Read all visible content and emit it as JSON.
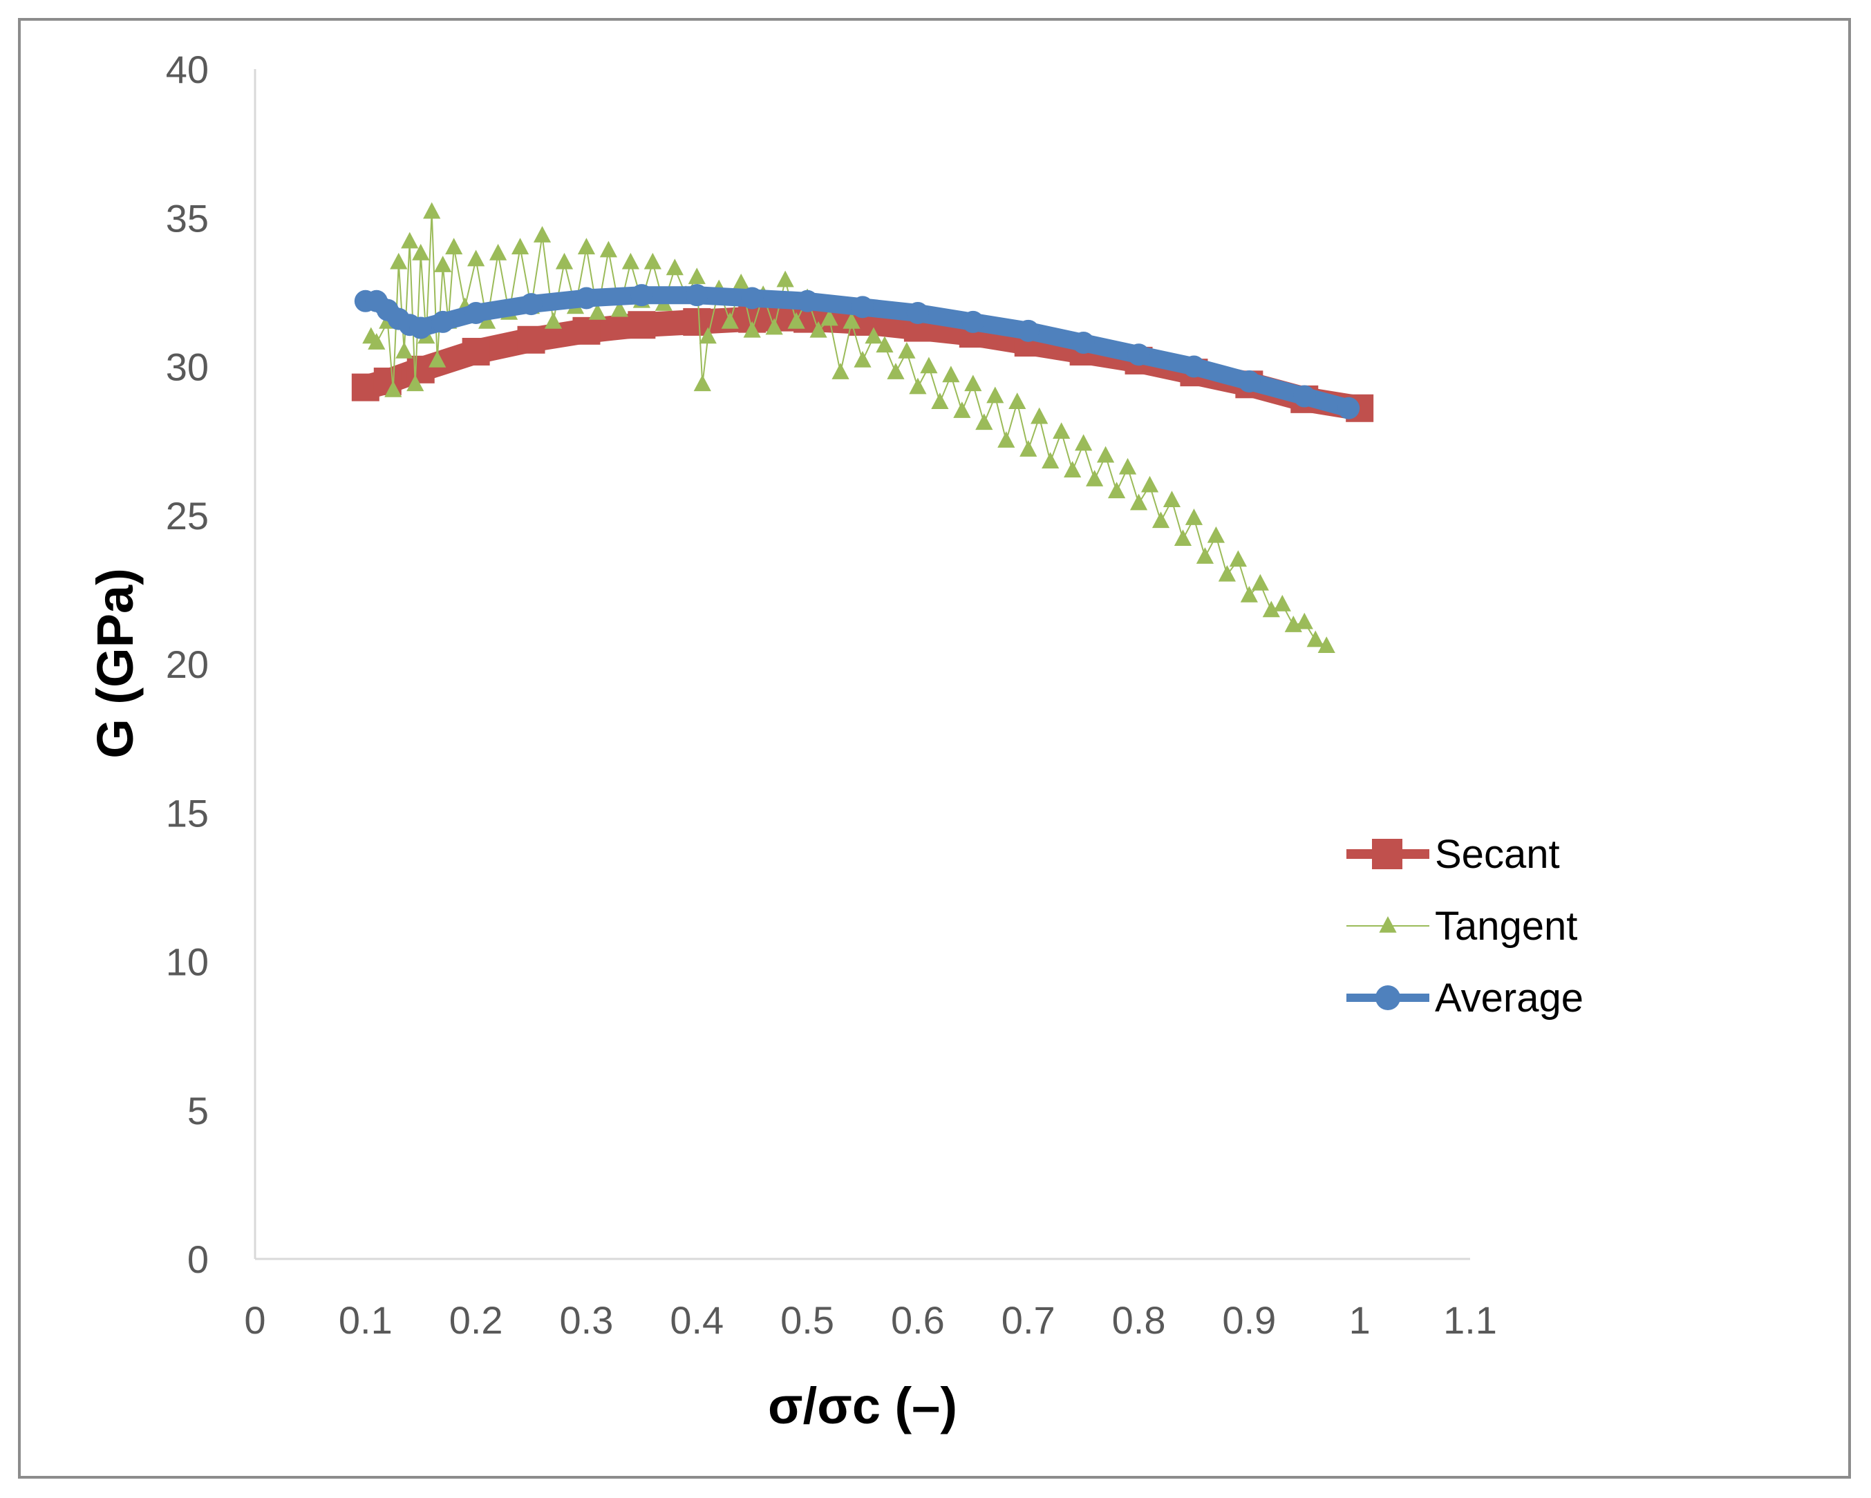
{
  "chart_data": {
    "type": "line",
    "title": "",
    "xlabel": "σ/σc (–)",
    "ylabel": "G (GPa)",
    "xlim": [
      0,
      1.1
    ],
    "ylim": [
      0,
      40
    ],
    "x_ticks": [
      "0",
      "0.1",
      "0.2",
      "0.3",
      "0.4",
      "0.5",
      "0.6",
      "0.7",
      "0.8",
      "0.9",
      "1",
      "1.1"
    ],
    "y_ticks": [
      "0",
      "5",
      "10",
      "15",
      "20",
      "25",
      "30",
      "35",
      "40"
    ],
    "grid": false,
    "legend_position": "right",
    "series": [
      {
        "name": "Secant",
        "color": "#c0504d",
        "marker": "square",
        "x": [
          0.1,
          0.12,
          0.15,
          0.2,
          0.25,
          0.3,
          0.35,
          0.4,
          0.45,
          0.5,
          0.55,
          0.6,
          0.65,
          0.7,
          0.75,
          0.8,
          0.85,
          0.9,
          0.95,
          1.0
        ],
        "y": [
          29.3,
          29.5,
          29.9,
          30.5,
          30.9,
          31.2,
          31.4,
          31.5,
          31.6,
          31.6,
          31.5,
          31.3,
          31.1,
          30.8,
          30.5,
          30.2,
          29.8,
          29.4,
          28.9,
          28.6
        ]
      },
      {
        "name": "Tangent",
        "color": "#9bbb59",
        "marker": "triangle",
        "x": [
          0.105,
          0.11,
          0.12,
          0.125,
          0.13,
          0.135,
          0.14,
          0.145,
          0.15,
          0.155,
          0.16,
          0.165,
          0.17,
          0.175,
          0.18,
          0.19,
          0.2,
          0.21,
          0.22,
          0.23,
          0.24,
          0.25,
          0.26,
          0.27,
          0.28,
          0.29,
          0.3,
          0.31,
          0.32,
          0.33,
          0.34,
          0.35,
          0.36,
          0.37,
          0.38,
          0.39,
          0.4,
          0.405,
          0.41,
          0.42,
          0.43,
          0.44,
          0.45,
          0.46,
          0.47,
          0.48,
          0.49,
          0.5,
          0.51,
          0.52,
          0.53,
          0.54,
          0.55,
          0.56,
          0.57,
          0.58,
          0.59,
          0.6,
          0.61,
          0.62,
          0.63,
          0.64,
          0.65,
          0.66,
          0.67,
          0.68,
          0.69,
          0.7,
          0.71,
          0.72,
          0.73,
          0.74,
          0.75,
          0.76,
          0.77,
          0.78,
          0.79,
          0.8,
          0.81,
          0.82,
          0.83,
          0.84,
          0.85,
          0.86,
          0.87,
          0.88,
          0.89,
          0.9,
          0.91,
          0.92,
          0.93,
          0.94,
          0.95,
          0.96,
          0.97
        ],
        "y": [
          31.0,
          30.8,
          31.5,
          29.2,
          33.5,
          30.5,
          34.2,
          29.4,
          33.8,
          31.0,
          35.2,
          30.2,
          33.4,
          31.5,
          34.0,
          32.0,
          33.6,
          31.5,
          33.8,
          31.8,
          34.0,
          32.0,
          34.4,
          31.5,
          33.5,
          32.0,
          34.0,
          31.8,
          33.9,
          31.9,
          33.5,
          32.2,
          33.5,
          32.1,
          33.3,
          32.4,
          33.0,
          29.4,
          31.0,
          32.6,
          31.5,
          32.8,
          31.2,
          32.4,
          31.3,
          32.9,
          31.5,
          32.3,
          31.2,
          31.6,
          29.8,
          31.5,
          30.2,
          31.0,
          30.7,
          29.8,
          30.5,
          29.3,
          30.0,
          28.8,
          29.7,
          28.5,
          29.4,
          28.1,
          29.0,
          27.5,
          28.8,
          27.2,
          28.3,
          26.8,
          27.8,
          26.5,
          27.4,
          26.2,
          27.0,
          25.8,
          26.6,
          25.4,
          26.0,
          24.8,
          25.5,
          24.2,
          24.9,
          23.6,
          24.3,
          23.0,
          23.5,
          22.3,
          22.7,
          21.8,
          22.0,
          21.3,
          21.4,
          20.8,
          20.6
        ]
      },
      {
        "name": "Average",
        "color": "#4f81bd",
        "marker": "circle",
        "x": [
          0.1,
          0.11,
          0.12,
          0.13,
          0.14,
          0.15,
          0.17,
          0.2,
          0.25,
          0.3,
          0.35,
          0.4,
          0.45,
          0.5,
          0.55,
          0.6,
          0.65,
          0.7,
          0.75,
          0.8,
          0.85,
          0.9,
          0.95,
          0.99
        ],
        "y": [
          32.2,
          32.2,
          31.9,
          31.6,
          31.4,
          31.3,
          31.5,
          31.8,
          32.1,
          32.3,
          32.4,
          32.4,
          32.3,
          32.2,
          32.0,
          31.8,
          31.5,
          31.2,
          30.8,
          30.4,
          30.0,
          29.5,
          29.0,
          28.6
        ]
      }
    ]
  }
}
